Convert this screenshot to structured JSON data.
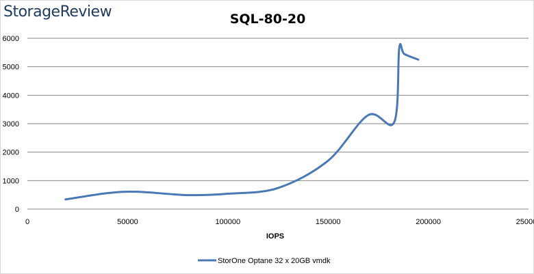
{
  "logo": {
    "text": "StorageReview"
  },
  "chart_data": {
    "type": "line",
    "title": "SQL-80-20",
    "xlabel": "IOPS",
    "ylabel": "",
    "xlim": [
      0,
      250000
    ],
    "ylim": [
      0,
      6000
    ],
    "x_ticks": [
      "0",
      "50000",
      "100000",
      "150000",
      "200000",
      "250000"
    ],
    "y_ticks": [
      "0",
      "1000",
      "2000",
      "3000",
      "4000",
      "5000",
      "6000"
    ],
    "grid": "horizontal",
    "legend_position": "bottom",
    "colors": {
      "series": "#4a78b4",
      "grid": "#868686"
    },
    "series": [
      {
        "name": "StorOne Optane 32 x 20GB vmdk",
        "x": [
          19000,
          40000,
          55000,
          80000,
          100000,
          125000,
          150000,
          170000,
          183000,
          185500,
          188000,
          195000
        ],
        "y": [
          340,
          560,
          610,
          490,
          540,
          740,
          1700,
          3300,
          3050,
          5650,
          5450,
          5250
        ]
      }
    ]
  }
}
